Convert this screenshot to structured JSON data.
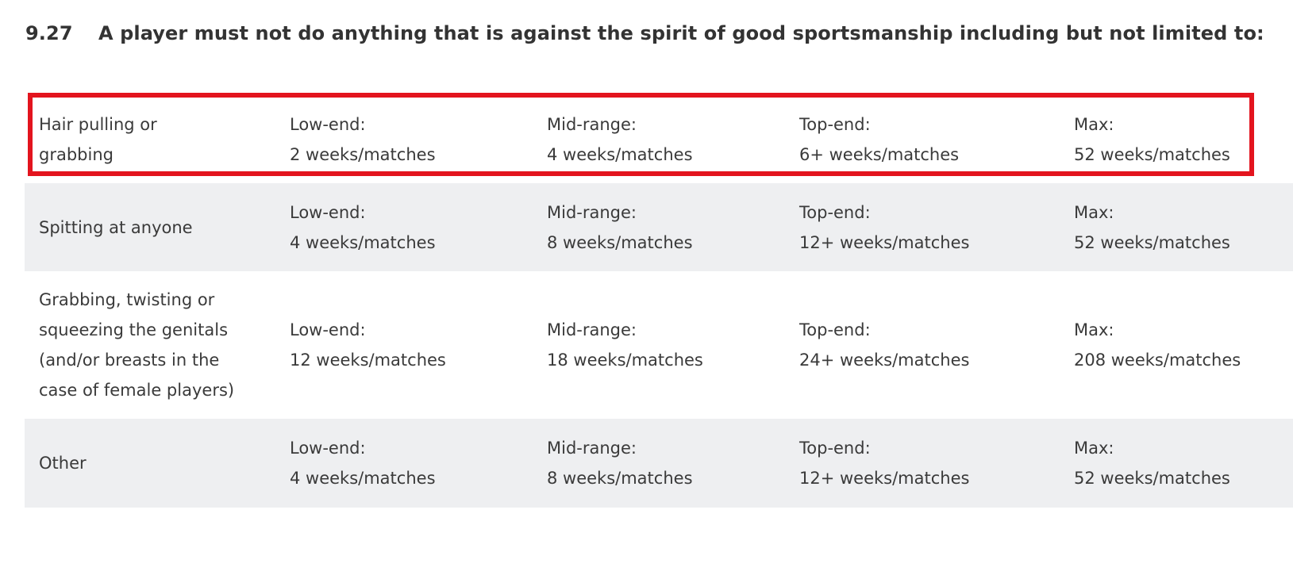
{
  "heading": {
    "number": "9.27",
    "text": "A player must not do anything that is against the spirit of good sportsmanship including but not limited to:"
  },
  "colors": {
    "highlight_border": "#e3141e",
    "row_shade": "#eeeff1"
  },
  "rows": [
    {
      "offence_lines": [
        "Hair pulling or",
        "grabbing"
      ],
      "low_label": "Low-end:",
      "low_value": "2 weeks/matches",
      "mid_label": "Mid-range:",
      "mid_value": "4 weeks/matches",
      "top_label": "Top-end:",
      "top_value": "6+ weeks/matches",
      "max_label": "Max:",
      "max_value": "52 weeks/matches",
      "highlighted": true
    },
    {
      "offence_lines": [
        "Spitting at anyone"
      ],
      "low_label": "Low-end:",
      "low_value": "4 weeks/matches",
      "mid_label": "Mid-range:",
      "mid_value": "8 weeks/matches",
      "top_label": "Top-end:",
      "top_value": "12+ weeks/matches",
      "max_label": "Max:",
      "max_value": "52 weeks/matches"
    },
    {
      "offence_lines": [
        "Grabbing, twisting or",
        "squeezing the genitals",
        "(and/or breasts in the",
        "case of female players)"
      ],
      "low_label": "Low-end:",
      "low_value": "12 weeks/matches",
      "mid_label": "Mid-range:",
      "mid_value": "18 weeks/matches",
      "top_label": "Top-end:",
      "top_value": "24+ weeks/matches",
      "max_label": "Max:",
      "max_value": "208 weeks/matches"
    },
    {
      "offence_lines": [
        "Other"
      ],
      "low_label": "Low-end:",
      "low_value": "4 weeks/matches",
      "mid_label": "Mid-range:",
      "mid_value": "8 weeks/matches",
      "top_label": "Top-end:",
      "top_value": "12+ weeks/matches",
      "max_label": "Max:",
      "max_value": "52 weeks/matches"
    }
  ]
}
